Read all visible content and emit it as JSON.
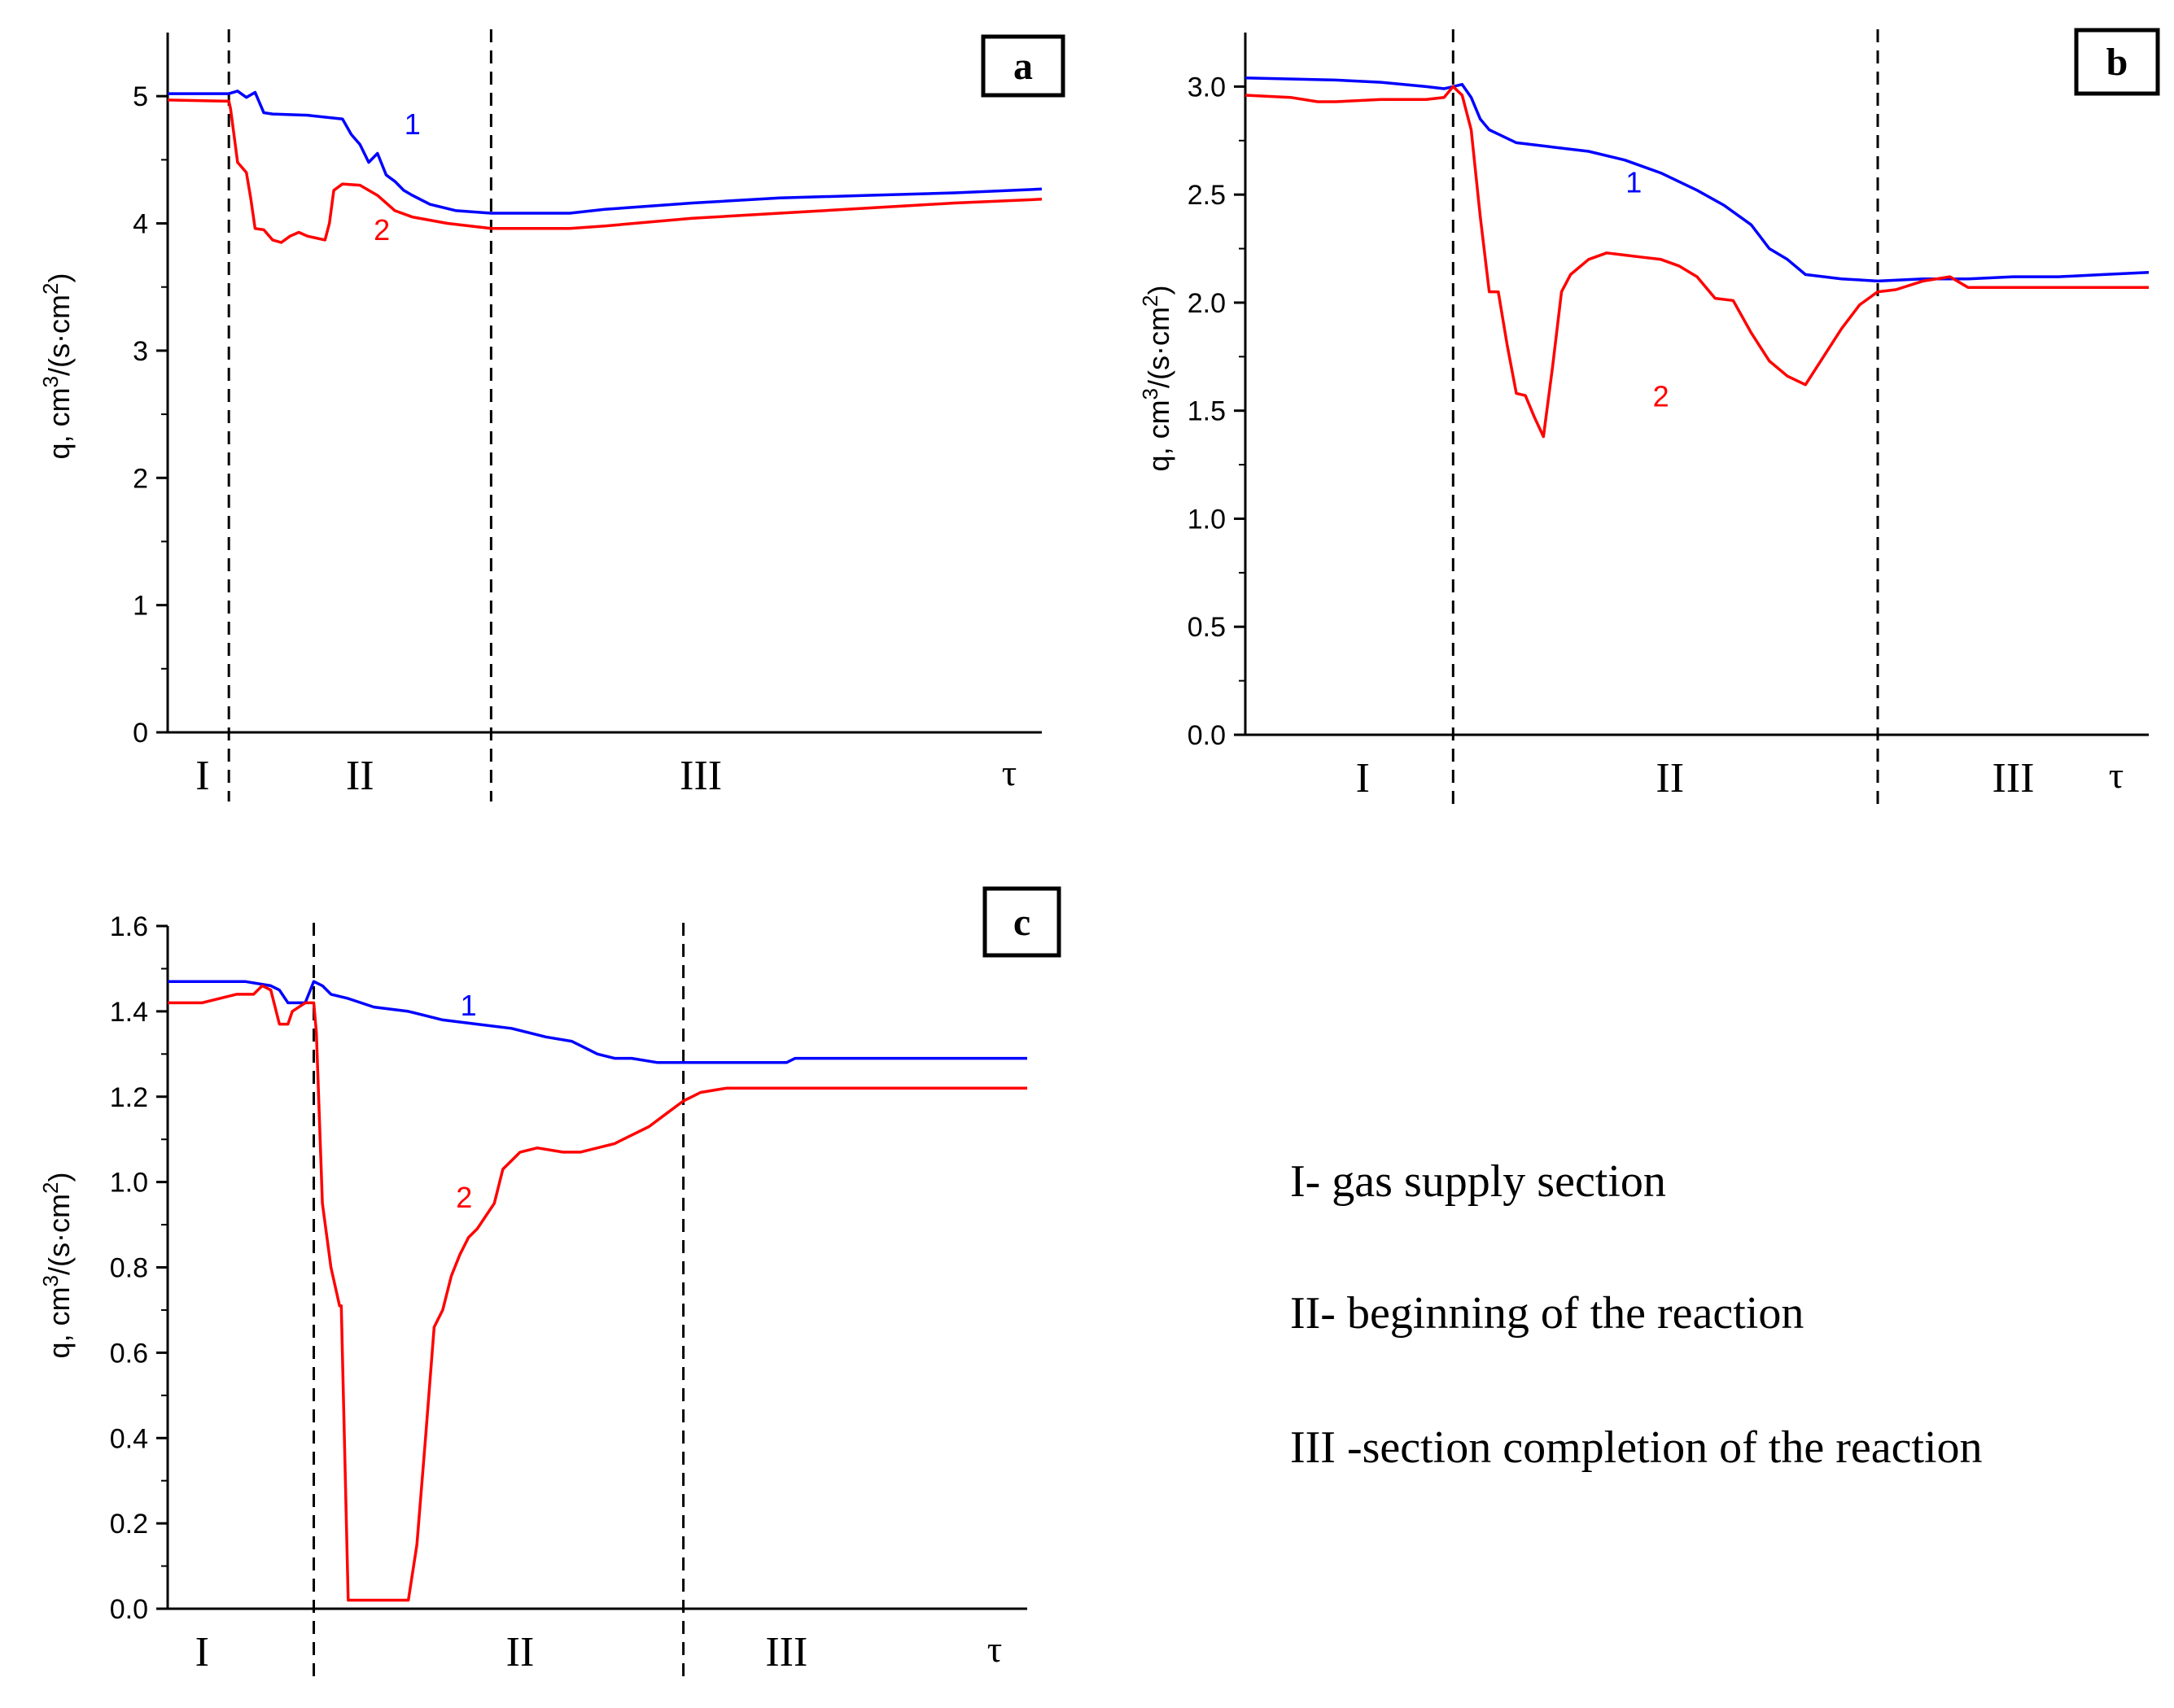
{
  "chart_data": [
    {
      "panel": "a",
      "type": "line",
      "ylabel": "q, cm3/(s·cm2)",
      "ylabel_main": "q, cm",
      "ylabel_sup1": "3",
      "ylabel_mid": "/(s·cm",
      "ylabel_sup2": "2",
      "ylabel_end": ")",
      "xlabel": "τ",
      "ylim": [
        0,
        5.5
      ],
      "xlim": [
        0,
        100
      ],
      "yticks": [
        0,
        1,
        2,
        3,
        4,
        5
      ],
      "ytick_labels": [
        "0",
        "1",
        "2",
        "3",
        "4",
        "5"
      ],
      "boundaries": [
        7,
        37
      ],
      "regions": [
        {
          "label": "I",
          "x": 4
        },
        {
          "label": "II",
          "x": 22
        },
        {
          "label": "III",
          "x": 61
        }
      ],
      "series": [
        {
          "name": "1",
          "color": "#0000ff",
          "x": [
            0,
            7,
            8,
            9,
            10,
            11,
            12,
            16,
            20,
            21,
            22,
            23,
            24,
            25,
            26,
            27,
            28,
            30,
            33,
            37,
            40,
            46,
            50,
            60,
            70,
            80,
            90,
            100
          ],
          "y": [
            5.02,
            5.02,
            5.04,
            4.99,
            5.03,
            4.87,
            4.86,
            4.85,
            4.82,
            4.7,
            4.62,
            4.48,
            4.55,
            4.38,
            4.33,
            4.26,
            4.22,
            4.15,
            4.1,
            4.08,
            4.08,
            4.08,
            4.11,
            4.16,
            4.2,
            4.22,
            4.24,
            4.27
          ]
        },
        {
          "name": "2",
          "color": "#ff0000",
          "x": [
            0,
            7,
            7.2,
            8,
            9,
            9.5,
            10,
            11,
            12,
            13,
            14,
            15,
            16,
            18,
            18.5,
            19,
            20,
            22,
            24,
            26,
            28,
            32,
            37,
            40,
            46,
            50,
            60,
            70,
            80,
            90,
            100
          ],
          "y": [
            4.97,
            4.96,
            4.9,
            4.48,
            4.4,
            4.2,
            3.96,
            3.95,
            3.87,
            3.85,
            3.9,
            3.93,
            3.9,
            3.87,
            4.0,
            4.26,
            4.31,
            4.3,
            4.22,
            4.1,
            4.05,
            4.0,
            3.96,
            3.96,
            3.96,
            3.98,
            4.04,
            4.08,
            4.12,
            4.16,
            4.19
          ]
        }
      ],
      "series_labels": [
        {
          "text": "1",
          "color": "#0000ff",
          "x": 28,
          "y": 4.7
        },
        {
          "text": "2",
          "color": "#ff0000",
          "x": 24.5,
          "y": 3.87
        }
      ]
    },
    {
      "panel": "b",
      "type": "line",
      "ylabel": "q, cm3/(s·cm2)",
      "ylabel_main": "q, cm",
      "ylabel_sup1": "3",
      "ylabel_mid": "/(s·cm",
      "ylabel_sup2": "2",
      "ylabel_end": ")",
      "xlabel": "τ",
      "ylim": [
        0,
        3.25
      ],
      "xlim": [
        0,
        100
      ],
      "yticks": [
        0,
        0.5,
        1.0,
        1.5,
        2.0,
        2.5,
        3.0
      ],
      "ytick_labels": [
        "0.0",
        "0.5",
        "1.0",
        "1.5",
        "2.0",
        "2.5",
        "3.0"
      ],
      "boundaries": [
        23,
        70
      ],
      "regions": [
        {
          "label": "I",
          "x": 13
        },
        {
          "label": "II",
          "x": 47
        },
        {
          "label": "III",
          "x": 85
        }
      ],
      "series": [
        {
          "name": "1",
          "color": "#0000ff",
          "x": [
            0,
            10,
            15,
            20,
            22,
            23,
            24,
            25,
            26,
            27,
            28,
            30,
            34,
            38,
            42,
            46,
            50,
            53,
            56,
            58,
            60,
            62,
            66,
            70,
            75,
            80,
            85,
            90,
            95,
            100
          ],
          "y": [
            3.04,
            3.03,
            3.02,
            3.0,
            2.99,
            3.0,
            3.01,
            2.95,
            2.85,
            2.8,
            2.78,
            2.74,
            2.72,
            2.7,
            2.66,
            2.6,
            2.52,
            2.45,
            2.36,
            2.25,
            2.2,
            2.13,
            2.11,
            2.1,
            2.11,
            2.11,
            2.12,
            2.12,
            2.13,
            2.14
          ]
        },
        {
          "name": "2",
          "color": "#ff0000",
          "x": [
            0,
            5,
            8,
            10,
            15,
            20,
            22,
            23,
            24,
            25,
            26,
            27,
            28,
            29,
            30,
            31,
            32,
            33,
            34,
            35,
            36,
            38,
            40,
            42,
            44,
            46,
            48,
            50,
            52,
            54,
            56,
            58,
            60,
            62,
            64,
            66,
            68,
            70,
            72,
            75,
            78,
            80,
            85,
            90,
            95,
            100
          ],
          "y": [
            2.96,
            2.95,
            2.93,
            2.93,
            2.94,
            2.94,
            2.95,
            3.0,
            2.96,
            2.8,
            2.4,
            2.05,
            2.05,
            1.8,
            1.58,
            1.57,
            1.47,
            1.38,
            1.7,
            2.05,
            2.13,
            2.2,
            2.23,
            2.22,
            2.21,
            2.2,
            2.17,
            2.12,
            2.02,
            2.01,
            1.86,
            1.73,
            1.66,
            1.62,
            1.75,
            1.88,
            1.99,
            2.05,
            2.06,
            2.1,
            2.12,
            2.07,
            2.07,
            2.07,
            2.07,
            2.07
          ]
        }
      ],
      "series_labels": [
        {
          "text": "1",
          "color": "#0000ff",
          "x": 43,
          "y": 2.51
        },
        {
          "text": "2",
          "color": "#ff0000",
          "x": 46,
          "y": 1.52
        }
      ]
    },
    {
      "panel": "c",
      "type": "line",
      "ylabel": "q, cm3/(s·cm2)",
      "ylabel_main": "q, cm",
      "ylabel_sup1": "3",
      "ylabel_mid": "/(s·cm",
      "ylabel_sup2": "2",
      "ylabel_end": ")",
      "xlabel": "τ",
      "ylim": [
        0,
        1.6
      ],
      "xlim": [
        0,
        100
      ],
      "yticks": [
        0,
        0.2,
        0.4,
        0.6,
        0.8,
        1.0,
        1.2,
        1.4,
        1.6
      ],
      "ytick_labels": [
        "0.0",
        "0.2",
        "0.4",
        "0.6",
        "0.8",
        "1.0",
        "1.2",
        "1.4",
        "1.6"
      ],
      "boundaries": [
        17,
        60
      ],
      "regions": [
        {
          "label": "I",
          "x": 4
        },
        {
          "label": "II",
          "x": 41
        },
        {
          "label": "III",
          "x": 72
        }
      ],
      "series": [
        {
          "name": "1",
          "color": "#0000ff",
          "x": [
            0,
            6,
            9,
            12,
            13,
            14,
            15,
            16,
            17,
            18,
            19,
            21,
            24,
            28,
            32,
            36,
            40,
            44,
            47,
            48,
            50,
            52,
            54,
            57,
            60,
            66,
            72,
            73,
            80,
            90,
            100
          ],
          "y": [
            1.47,
            1.47,
            1.47,
            1.46,
            1.45,
            1.42,
            1.42,
            1.42,
            1.47,
            1.46,
            1.44,
            1.43,
            1.41,
            1.4,
            1.38,
            1.37,
            1.36,
            1.34,
            1.33,
            1.32,
            1.3,
            1.29,
            1.29,
            1.28,
            1.28,
            1.28,
            1.28,
            1.29,
            1.29,
            1.29,
            1.29
          ]
        },
        {
          "name": "2",
          "color": "#ff0000",
          "x": [
            0,
            4,
            8,
            10,
            11,
            12,
            13,
            14,
            14.5,
            16,
            17,
            17.3,
            18,
            19,
            20,
            20.2,
            21,
            21.5,
            22,
            24,
            25,
            28,
            29,
            30,
            31,
            32,
            33,
            34,
            35,
            36,
            37,
            38,
            39,
            41,
            43,
            46,
            48,
            50,
            52,
            54,
            56,
            58,
            60,
            61,
            62,
            65,
            70,
            80,
            90,
            100
          ],
          "y": [
            1.42,
            1.42,
            1.44,
            1.44,
            1.46,
            1.45,
            1.37,
            1.37,
            1.4,
            1.42,
            1.42,
            1.35,
            0.95,
            0.8,
            0.71,
            0.71,
            0.02,
            0.02,
            0.02,
            0.02,
            0.02,
            0.02,
            0.15,
            0.4,
            0.66,
            0.7,
            0.78,
            0.83,
            0.87,
            0.89,
            0.92,
            0.95,
            1.03,
            1.07,
            1.08,
            1.07,
            1.07,
            1.08,
            1.09,
            1.11,
            1.13,
            1.16,
            1.19,
            1.2,
            1.21,
            1.22,
            1.22,
            1.22,
            1.22,
            1.22
          ]
        }
      ],
      "series_labels": [
        {
          "text": "1",
          "color": "#0000ff",
          "x": 35,
          "y": 1.39
        },
        {
          "text": "2",
          "color": "#ff0000",
          "x": 34.5,
          "y": 0.94
        }
      ]
    }
  ],
  "legend": [
    "I- gas supply section",
    "II- beginning of the reaction",
    "III -section completion of the reaction"
  ]
}
